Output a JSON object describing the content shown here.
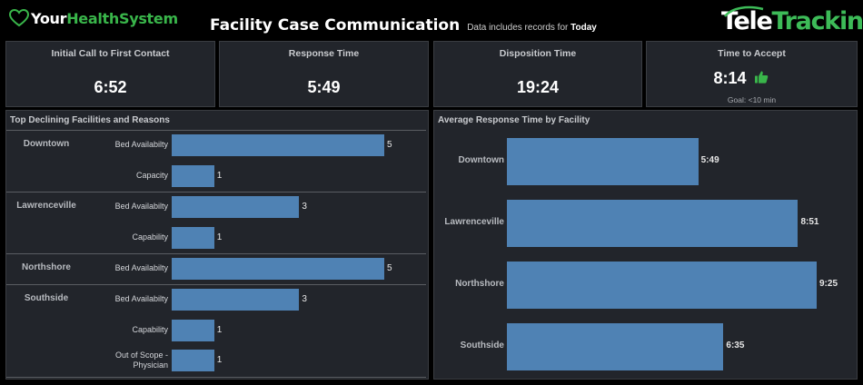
{
  "header": {
    "brand_left_your": "Your",
    "brand_left_hs": "HealthSystem",
    "title": "Facility Case Communication",
    "subtitle_prefix": "Data includes records for",
    "subtitle_period": "Today",
    "brand_right_tele": "Tele",
    "brand_right_tracking": "Tracking"
  },
  "kpis": [
    {
      "label": "Initial Call to First Contact",
      "value": "6:52"
    },
    {
      "label": "Response Time",
      "value": "5:49"
    },
    {
      "label": "Disposition Time",
      "value": "19:24"
    },
    {
      "label": "Time to Accept",
      "value": "8:14",
      "goal": "Goal:  <10 min",
      "status_icon": "thumbs-up-icon"
    }
  ],
  "colors": {
    "bar": "#4f82b4",
    "accent_green": "#39b54a",
    "panel_bg": "#22252b"
  },
  "chart_data": [
    {
      "type": "bar",
      "title": "Top Declining Facilities and Reasons",
      "orientation": "horizontal",
      "rows": [
        {
          "facility": "Downtown",
          "reason": "Bed Availabilty",
          "value": 5
        },
        {
          "facility": "Downtown",
          "reason": "Capacity",
          "value": 1
        },
        {
          "facility": "Lawrenceville",
          "reason": "Bed Availabilty",
          "value": 3
        },
        {
          "facility": "Lawrenceville",
          "reason": "Capability",
          "value": 1
        },
        {
          "facility": "Northshore",
          "reason": "Bed Availabilty",
          "value": 5
        },
        {
          "facility": "Southside",
          "reason": "Bed Availabilty",
          "value": 3
        },
        {
          "facility": "Southside",
          "reason": "Capability",
          "value": 1
        },
        {
          "facility": "Southside",
          "reason": "Out of Scope -Physician",
          "value": 1
        }
      ],
      "xlim": [
        0,
        5.5
      ]
    },
    {
      "type": "bar",
      "title": "Average Response Time by Facility",
      "orientation": "horizontal",
      "categories": [
        "Downtown",
        "Lawrenceville",
        "Northshore",
        "Southside"
      ],
      "values_seconds": [
        349,
        531,
        565,
        395
      ],
      "labels": [
        "5:49",
        "8:51",
        "9:25",
        "6:35"
      ]
    }
  ]
}
